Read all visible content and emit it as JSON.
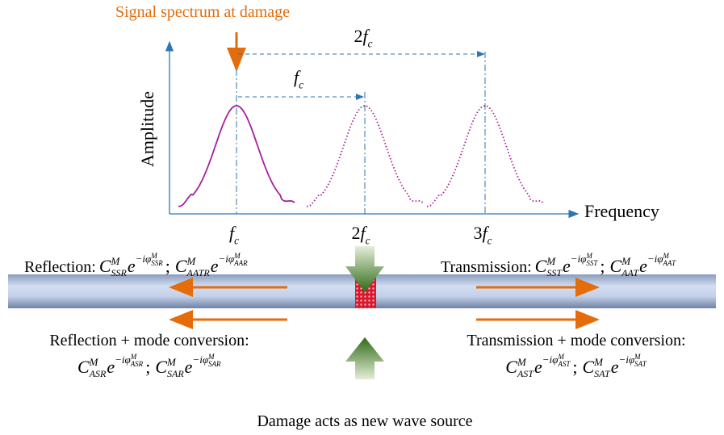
{
  "annotation": "Signal spectrum at damage",
  "axes": {
    "y_label": "Amplitude",
    "x_label": "Frequency"
  },
  "spacing_labels": [
    {
      "coef": "2",
      "sym": "f",
      "sub": "c"
    },
    {
      "sym": "f",
      "sub": "c"
    }
  ],
  "freq_labels": [
    {
      "sym": "f",
      "sub": "c"
    },
    {
      "coef": "2",
      "sym": "f",
      "sub": "c"
    },
    {
      "coef": "3",
      "sym": "f",
      "sub": "c"
    }
  ],
  "waves": [
    {
      "label": "Reflection:",
      "separator": ";",
      "terms": [
        {
          "C": "C",
          "sup": "M",
          "sub": "SSR",
          "e": "e",
          "exp": "−iφ",
          "exp_sup": "M",
          "exp_sub": "SSR"
        },
        {
          "C": "C",
          "sup": "M",
          "sub": "AATR",
          "e": "e",
          "exp": "−iφ",
          "exp_sup": "M",
          "exp_sub": "AAR"
        }
      ]
    },
    {
      "label": "Transmission:",
      "separator": ";",
      "terms": [
        {
          "C": "C",
          "sup": "M",
          "sub": "SST",
          "e": "e",
          "exp": "−iφ",
          "exp_sup": "M",
          "exp_sub": "SST"
        },
        {
          "C": "C",
          "sup": "M",
          "sub": "AAT",
          "e": "e",
          "exp": "−iφ",
          "exp_sup": "M",
          "exp_sub": "AAT"
        }
      ]
    },
    {
      "label": "Reflection + mode conversion:",
      "separator": ";",
      "terms": [
        {
          "C": "C",
          "sup": "M",
          "sub": "ASR",
          "e": "e",
          "exp": "−iφ",
          "exp_sup": "M",
          "exp_sub": "ASR"
        },
        {
          "C": "C",
          "sup": "M",
          "sub": "SAR",
          "e": "e",
          "exp": "−iφ",
          "exp_sup": "M",
          "exp_sub": "SAR"
        }
      ]
    },
    {
      "label": "Transmission + mode conversion:",
      "separator": ";",
      "terms": [
        {
          "C": "C",
          "sup": "M",
          "sub": "AST",
          "e": "e",
          "exp": "−iφ",
          "exp_sup": "M",
          "exp_sub": "AST"
        },
        {
          "C": "C",
          "sup": "M",
          "sub": "SAT",
          "e": "e",
          "exp": "−iφ",
          "exp_sup": "M",
          "exp_sub": "SAT"
        }
      ]
    }
  ],
  "caption": "Damage acts as new wave source"
}
